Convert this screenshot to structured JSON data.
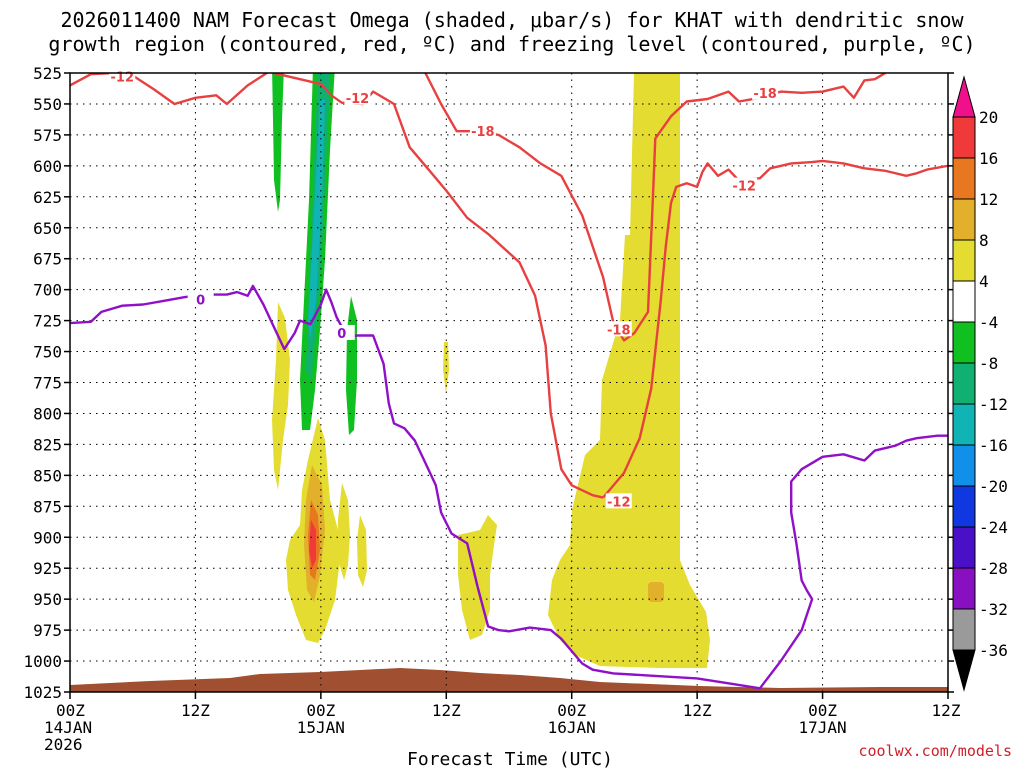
{
  "chart_data": {
    "type": "heatmap",
    "title_line1": "2026011400 NAM Forecast Omega (shaded, μbar/s) for KHAT with dendritic snow",
    "title_line2": "growth region (contoured, red, ºC) and freezing level (contoured, purple, ºC)",
    "xlabel": "Forecast Time (UTC)",
    "credit": "coolwx.com/models",
    "x_hours": [
      0,
      12,
      24,
      36,
      48,
      60,
      72,
      84
    ],
    "x_ticks": [
      {
        "hour": 0,
        "lines": [
          "00Z",
          "14JAN",
          "2026"
        ]
      },
      {
        "hour": 12,
        "lines": [
          "12Z"
        ]
      },
      {
        "hour": 24,
        "lines": [
          "00Z",
          "15JAN"
        ]
      },
      {
        "hour": 36,
        "lines": [
          "12Z"
        ]
      },
      {
        "hour": 48,
        "lines": [
          "00Z",
          "16JAN"
        ]
      },
      {
        "hour": 60,
        "lines": [
          "12Z"
        ]
      },
      {
        "hour": 72,
        "lines": [
          "00Z",
          "17JAN"
        ]
      },
      {
        "hour": 84,
        "lines": [
          "12Z"
        ]
      }
    ],
    "xlim": [
      0,
      84
    ],
    "y_levels": [
      525,
      550,
      575,
      600,
      625,
      650,
      675,
      700,
      725,
      750,
      775,
      800,
      825,
      850,
      875,
      900,
      925,
      950,
      975,
      1000,
      1025
    ],
    "ylim": [
      525,
      1025
    ],
    "colorbar": {
      "labels": [
        "20",
        "16",
        "12",
        "8",
        "4",
        "-4",
        "-8",
        "-12",
        "-16",
        "-20",
        "-24",
        "-28",
        "-32",
        "-36"
      ],
      "colors": [
        "#f0108a",
        "#f03a3a",
        "#e87820",
        "#e2b02a",
        "#e4dc30",
        "#ffffff",
        "#10c020",
        "#10b070",
        "#10b4b4",
        "#1090e8",
        "#1038e0",
        "#4a10c8",
        "#8810c0",
        "#9a9a9a",
        "#000000"
      ]
    },
    "contours": {
      "dgz_minus12_upper": {
        "name": "-12 C (upper)",
        "color": "#e84040",
        "label": "-12",
        "label_at": [
          [
            5,
            528
          ],
          [
            27.5,
            545
          ]
        ],
        "points": [
          [
            0,
            535
          ],
          [
            2,
            526
          ],
          [
            4,
            525
          ],
          [
            6,
            527
          ],
          [
            8,
            538
          ],
          [
            10,
            550
          ],
          [
            12,
            545
          ],
          [
            14,
            543
          ],
          [
            15,
            550
          ],
          [
            17,
            535
          ],
          [
            19,
            524
          ],
          [
            22,
            530
          ],
          [
            24,
            534
          ],
          [
            25,
            543
          ],
          [
            26,
            549
          ],
          [
            28,
            550
          ],
          [
            29,
            540
          ],
          [
            31,
            550
          ],
          [
            32.5,
            585
          ],
          [
            34,
            600
          ],
          [
            36,
            620
          ],
          [
            38,
            642
          ],
          [
            40,
            655
          ],
          [
            43,
            678
          ],
          [
            44.5,
            705
          ],
          [
            45.5,
            745
          ],
          [
            46,
            800
          ],
          [
            47,
            845
          ],
          [
            48,
            858
          ],
          [
            50,
            866
          ],
          [
            51,
            868
          ]
        ]
      },
      "dgz_minus18": {
        "name": "-18 C",
        "color": "#e84040",
        "label": "-18",
        "label_at": [
          [
            39.5,
            572
          ],
          [
            52.5,
            732
          ],
          [
            66.5,
            541
          ]
        ],
        "points": [
          [
            34,
            525
          ],
          [
            35.5,
            550
          ],
          [
            37,
            572
          ],
          [
            39,
            572
          ],
          [
            41,
            575
          ],
          [
            43,
            585
          ],
          [
            45,
            598
          ],
          [
            47,
            608
          ],
          [
            49,
            640
          ],
          [
            51,
            690
          ],
          [
            52,
            727
          ],
          [
            53,
            741
          ],
          [
            54,
            735
          ],
          [
            55.3,
            718
          ],
          [
            55.8,
            620
          ],
          [
            56,
            578
          ],
          [
            57.5,
            560
          ],
          [
            59,
            548
          ],
          [
            61,
            546
          ],
          [
            63,
            540
          ],
          [
            64,
            548
          ],
          [
            66,
            545
          ],
          [
            68,
            540
          ],
          [
            70,
            541
          ],
          [
            72,
            540
          ],
          [
            74,
            536
          ],
          [
            75,
            545
          ],
          [
            76,
            531
          ],
          [
            77,
            530
          ],
          [
            78,
            525
          ]
        ]
      },
      "dgz_minus12_lower": {
        "name": "-12 C (lower)",
        "color": "#e84040",
        "label": "-12",
        "label_at": [
          [
            52.5,
            871
          ],
          [
            64.5,
            616
          ]
        ],
        "points": [
          [
            51,
            868
          ],
          [
            53,
            848
          ],
          [
            54.5,
            820
          ],
          [
            55.6,
            780
          ],
          [
            56.5,
            710
          ],
          [
            57,
            665
          ],
          [
            57.5,
            630
          ],
          [
            58,
            617
          ],
          [
            59,
            614
          ],
          [
            60,
            617
          ],
          [
            60.5,
            605
          ],
          [
            61,
            598
          ],
          [
            62,
            608
          ],
          [
            63,
            603
          ],
          [
            64,
            612
          ],
          [
            66,
            610
          ],
          [
            67,
            602
          ],
          [
            69,
            598
          ],
          [
            71,
            597
          ],
          [
            72,
            596
          ],
          [
            74,
            598
          ],
          [
            76,
            602
          ],
          [
            78,
            604
          ],
          [
            80,
            608
          ],
          [
            81,
            606
          ],
          [
            82,
            603
          ],
          [
            84,
            600
          ]
        ]
      },
      "freezing_level": {
        "name": "0 C",
        "color": "#9010c8",
        "label": "0",
        "label_at": [
          [
            12.5,
            708
          ],
          [
            26,
            735
          ]
        ],
        "points": [
          [
            0,
            727
          ],
          [
            2,
            726
          ],
          [
            3,
            718
          ],
          [
            5,
            713
          ],
          [
            7,
            712
          ],
          [
            9,
            709
          ],
          [
            11,
            706
          ],
          [
            13,
            704
          ],
          [
            15,
            704
          ],
          [
            16,
            702
          ],
          [
            17,
            705
          ],
          [
            17.5,
            697
          ],
          [
            18.5,
            712
          ],
          [
            19.5,
            730
          ],
          [
            20.5,
            748
          ],
          [
            21.5,
            735
          ],
          [
            22,
            725
          ],
          [
            23,
            728
          ],
          [
            24,
            712
          ],
          [
            24.5,
            700
          ],
          [
            25,
            710
          ],
          [
            25.5,
            722
          ],
          [
            26.5,
            738
          ],
          [
            27.5,
            737
          ],
          [
            29,
            737
          ],
          [
            30,
            760
          ],
          [
            30.5,
            792
          ],
          [
            31,
            808
          ],
          [
            32,
            812
          ],
          [
            33,
            822
          ],
          [
            34,
            840
          ],
          [
            35,
            858
          ],
          [
            35.5,
            880
          ],
          [
            36.5,
            897
          ],
          [
            38,
            905
          ],
          [
            39,
            940
          ],
          [
            40,
            972
          ],
          [
            41,
            975
          ],
          [
            42,
            976
          ],
          [
            44,
            973
          ],
          [
            46,
            975
          ],
          [
            47,
            982
          ],
          [
            48,
            992
          ],
          [
            49,
            1002
          ],
          [
            50,
            1007
          ],
          [
            52,
            1010
          ],
          [
            56,
            1012
          ],
          [
            60,
            1014
          ],
          [
            63,
            1018
          ],
          [
            66,
            1022
          ],
          [
            68,
            1000
          ],
          [
            70,
            975
          ],
          [
            71,
            950
          ],
          [
            70.5,
            943
          ],
          [
            70,
            935
          ],
          [
            69.5,
            905
          ],
          [
            69,
            880
          ],
          [
            69,
            855
          ],
          [
            70,
            845
          ],
          [
            72,
            835
          ],
          [
            74,
            833
          ],
          [
            76,
            838
          ],
          [
            77,
            830
          ],
          [
            79,
            826
          ],
          [
            80,
            822
          ],
          [
            81,
            820
          ],
          [
            83,
            818
          ],
          [
            84,
            818
          ]
        ]
      }
    }
  }
}
